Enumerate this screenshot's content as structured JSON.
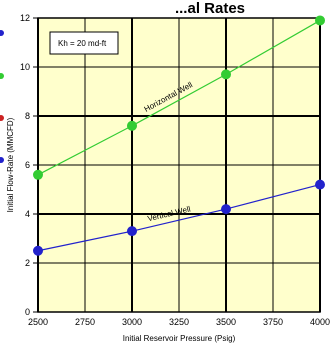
{
  "chart_data": {
    "type": "line",
    "title_fragment": "...al Rates",
    "xlabel": "Initial Reservoir Pressure (Psig)",
    "ylabel": "Initial Flow-Rate (MMCFD)",
    "xlim": [
      2500,
      4000
    ],
    "ylim": [
      0,
      12
    ],
    "x_ticks": [
      2500,
      2750,
      3000,
      3250,
      3500,
      3750,
      4000
    ],
    "y_ticks": [
      0,
      2,
      4,
      6,
      8,
      10,
      12
    ],
    "grid": true,
    "annotation": "Kh = 20 md-ft",
    "series": [
      {
        "name": "Horizontal Well",
        "color": "#33cc33",
        "x": [
          2500,
          3000,
          3500,
          4000
        ],
        "y": [
          5.6,
          7.6,
          9.7,
          11.9
        ]
      },
      {
        "name": "Vertical Well",
        "color": "#2222cc",
        "x": [
          2500,
          3000,
          3500,
          4000
        ],
        "y": [
          2.5,
          3.3,
          4.2,
          5.2
        ]
      }
    ],
    "left_edge_marker_colors": [
      "#2222cc",
      "#33cc33",
      "#cc2222",
      "#2222cc"
    ]
  }
}
